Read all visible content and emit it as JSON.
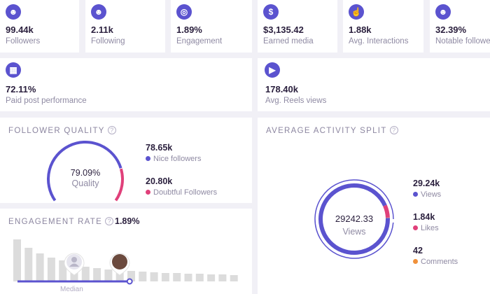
{
  "stats": [
    {
      "value": "99.44k",
      "label": "Followers",
      "icon": "users-icon"
    },
    {
      "value": "2.11k",
      "label": "Following",
      "icon": "user-following-icon"
    },
    {
      "value": "1.89%",
      "label": "Engagement",
      "icon": "target-icon"
    },
    {
      "value": "$3,135.42",
      "label": "Earned media",
      "icon": "dollar-icon"
    },
    {
      "value": "1.88k",
      "label": "Avg. Interactions",
      "icon": "pointer-hand-icon"
    },
    {
      "value": "32.39%",
      "label": "Notable followers",
      "icon": "notable-users-icon"
    },
    {
      "value": "72.11%",
      "label": "Paid post performance",
      "icon": "paid-post-icon"
    },
    {
      "value": "178.40k",
      "label": "Avg. Reels views",
      "icon": "play-icon"
    }
  ],
  "follower_quality": {
    "title": "FOLLOWER QUALITY",
    "help": "?",
    "percent": "79.09%",
    "percent_value": 79.09,
    "center_label": "Quality",
    "items": [
      {
        "value": "78.65k",
        "label": "Nice followers",
        "color": "#5b53cf"
      },
      {
        "value": "20.80k",
        "label": "Doubtful Followers",
        "color": "#e0407a"
      }
    ]
  },
  "engagement_rate": {
    "title": "ENGAGEMENT RATE",
    "help": "?",
    "value": "1.89%",
    "median_label": "Median",
    "bars": [
      60,
      48,
      40,
      34,
      30,
      24,
      21,
      19,
      17,
      16,
      15,
      14,
      13,
      12,
      12,
      11,
      11,
      10,
      10,
      9
    ],
    "median_index": 5,
    "current_index": 9
  },
  "activity_split": {
    "title": "AVERAGE ACTIVITY SPLIT",
    "help": "?",
    "center_value": "29242.33",
    "center_label": "Views",
    "items": [
      {
        "value": "29.24k",
        "label": "Views",
        "color": "#5b53cf",
        "amount": 29242
      },
      {
        "value": "1.84k",
        "label": "Likes",
        "color": "#e0407a",
        "amount": 1840
      },
      {
        "value": "42",
        "label": "Comments",
        "color": "#f0913a",
        "amount": 42
      }
    ]
  }
}
